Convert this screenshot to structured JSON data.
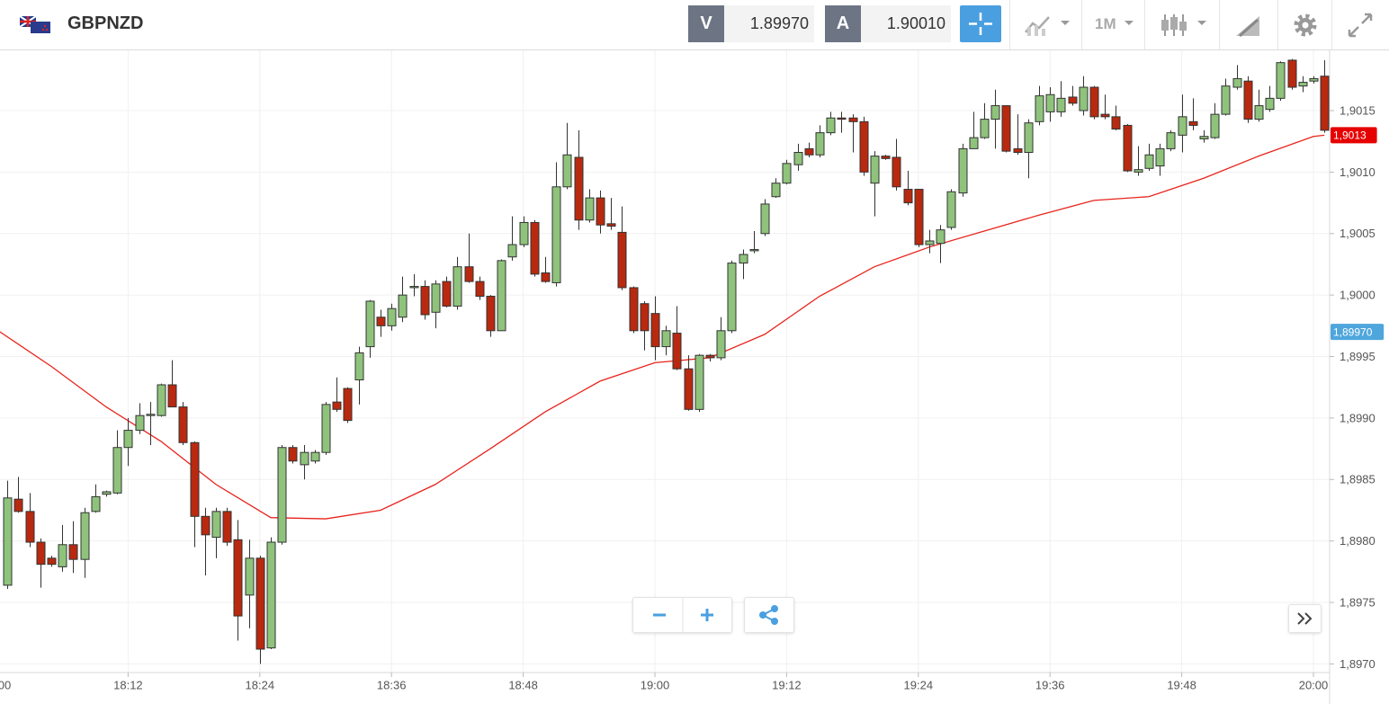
{
  "header": {
    "symbol": "GBPNZD",
    "bid_label": "V",
    "bid": "1.89970",
    "ask_label": "A",
    "ask": "1.90010",
    "timeframe": "1M"
  },
  "chart_data": {
    "type": "candlestick",
    "x": [
      "18:01",
      "18:02",
      "18:03",
      "18:04",
      "18:05",
      "18:06",
      "18:07",
      "18:08",
      "18:09",
      "18:10",
      "18:11",
      "18:12",
      "18:13",
      "18:14",
      "18:15",
      "18:16",
      "18:17",
      "18:18",
      "18:19",
      "18:20",
      "18:21",
      "18:22",
      "18:23",
      "18:24",
      "18:25",
      "18:26",
      "18:27",
      "18:28",
      "18:29",
      "18:30",
      "18:31",
      "18:32",
      "18:33",
      "18:34",
      "18:35",
      "18:36",
      "18:37",
      "18:38",
      "18:39",
      "18:40",
      "18:41",
      "18:42",
      "18:43",
      "18:44",
      "18:45",
      "18:46",
      "18:47",
      "18:48",
      "18:49",
      "18:50",
      "18:51",
      "18:52",
      "18:53",
      "18:54",
      "18:55",
      "18:56",
      "18:57",
      "18:58",
      "18:59",
      "19:00",
      "19:01",
      "19:02",
      "19:03",
      "19:04",
      "19:05",
      "19:06",
      "19:07",
      "19:08",
      "19:09",
      "19:10",
      "19:11",
      "19:12",
      "19:13",
      "19:14",
      "19:15",
      "19:16",
      "19:17",
      "19:18",
      "19:19",
      "19:20",
      "19:21",
      "19:22",
      "19:23",
      "19:24",
      "19:25",
      "19:26",
      "19:27",
      "19:28",
      "19:29",
      "19:30",
      "19:31",
      "19:32",
      "19:33",
      "19:34",
      "19:35",
      "19:36",
      "19:37",
      "19:38",
      "19:39",
      "19:40",
      "19:41",
      "19:42",
      "19:43",
      "19:44",
      "19:45",
      "19:46",
      "19:47",
      "19:48",
      "19:49",
      "19:50",
      "19:51",
      "19:52",
      "19:53",
      "19:54",
      "19:55",
      "19:56",
      "19:57",
      "19:58",
      "19:59",
      "20:00",
      "20:01"
    ],
    "open": [
      1.89764,
      1.89834,
      1.89824,
      1.89799,
      1.89786,
      1.89779,
      1.89797,
      1.89785,
      1.89824,
      1.89838,
      1.89839,
      1.89876,
      1.8989,
      1.89902,
      1.89902,
      1.89927,
      1.89909,
      1.8988,
      1.8982,
      1.89803,
      1.89824,
      1.89801,
      1.89756,
      1.89786,
      1.89713,
      1.89799,
      1.89876,
      1.89862,
      1.89865,
      1.89872,
      1.89913,
      1.89924,
      1.89931,
      1.89958,
      1.89982,
      1.89975,
      1.89982,
      1.90006,
      1.90007,
      1.89986,
      1.90011,
      1.89991,
      1.90023,
      1.90011,
      1.89999,
      1.89971,
      1.90031,
      1.90041,
      1.90059,
      1.90018,
      1.9001,
      1.90088,
      1.90112,
      1.90061,
      1.90079,
      1.90058,
      1.90051,
      1.90006,
      1.89993,
      1.89985,
      1.89958,
      1.89969,
      1.8994,
      1.89907,
      1.89951,
      1.89949,
      1.89971,
      1.90026,
      1.90036,
      1.9005,
      1.9008,
      1.90091,
      1.90106,
      1.90119,
      1.90114,
      1.90132,
      1.90144,
      1.90144,
      1.90141,
      1.90091,
      1.90113,
      1.90112,
      1.90086,
      1.90086,
      1.90041,
      1.90042,
      1.90055,
      1.90083,
      1.90119,
      1.90128,
      1.90143,
      1.90154,
      1.90119,
      1.90116,
      1.90141,
      1.90149,
      1.90149,
      1.90161,
      1.9015,
      1.90169,
      1.90147,
      1.90145,
      1.90138,
      1.901,
      1.90103,
      1.90105,
      1.90119,
      1.9013,
      1.90141,
      1.90127,
      1.90128,
      1.90147,
      1.90169,
      1.90174,
      1.90143,
      1.90151,
      1.9016,
      1.90191,
      1.9017,
      1.90174,
      1.90178
    ],
    "high": [
      1.89849,
      1.89852,
      1.89839,
      1.89802,
      1.89788,
      1.89813,
      1.89816,
      1.89827,
      1.89846,
      1.89841,
      1.8989,
      1.899,
      1.89912,
      1.89913,
      1.89928,
      1.89947,
      1.89913,
      1.89881,
      1.89827,
      1.89827,
      1.89827,
      1.89817,
      1.89801,
      1.89788,
      1.89803,
      1.89878,
      1.89878,
      1.89878,
      1.89874,
      1.89913,
      1.89933,
      1.89925,
      1.89958,
      1.89996,
      1.89988,
      1.89993,
      1.90015,
      1.90017,
      1.90012,
      1.90012,
      1.90015,
      1.90031,
      1.9005,
      1.90015,
      1.9,
      1.90029,
      1.90064,
      1.90064,
      1.90061,
      1.90031,
      1.90108,
      1.9014,
      1.90134,
      1.90086,
      1.90085,
      1.90079,
      1.90072,
      1.90007,
      1.89995,
      1.89999,
      1.89975,
      1.89991,
      1.89951,
      1.89952,
      1.89952,
      1.89982,
      1.90028,
      1.90037,
      1.90052,
      1.90078,
      1.90095,
      1.9011,
      1.90123,
      1.90124,
      1.90138,
      1.90149,
      1.90149,
      1.90147,
      1.90145,
      1.90117,
      1.90114,
      1.90127,
      1.90101,
      1.90086,
      1.90053,
      1.90057,
      1.90086,
      1.90123,
      1.90149,
      1.90156,
      1.90167,
      1.90154,
      1.90147,
      1.90143,
      1.9017,
      1.90169,
      1.90174,
      1.9017,
      1.90178,
      1.9017,
      1.90163,
      1.90154,
      1.90139,
      1.90121,
      1.90123,
      1.90123,
      1.90134,
      1.90163,
      1.9016,
      1.90134,
      1.90156,
      1.90176,
      1.90187,
      1.90178,
      1.90167,
      1.9017,
      1.9019,
      1.90192,
      1.90178,
      1.90178,
      1.90191
    ],
    "low": [
      1.89761,
      1.89823,
      1.89795,
      1.89762,
      1.89779,
      1.89775,
      1.89774,
      1.8977,
      1.89823,
      1.89836,
      1.89838,
      1.89861,
      1.89887,
      1.89878,
      1.89901,
      1.89909,
      1.89878,
      1.89795,
      1.89772,
      1.89786,
      1.89796,
      1.89719,
      1.89729,
      1.897,
      1.89712,
      1.89797,
      1.89863,
      1.8985,
      1.89863,
      1.8987,
      1.89905,
      1.89896,
      1.89911,
      1.89949,
      1.89966,
      1.89971,
      1.89978,
      1.89999,
      1.8998,
      1.89973,
      1.8999,
      1.89988,
      1.9001,
      1.89996,
      1.89966,
      1.89971,
      1.90028,
      1.90039,
      1.90015,
      1.9001,
      1.90007,
      1.90086,
      1.90053,
      1.90059,
      1.9005,
      1.90053,
      1.90004,
      1.89969,
      1.89955,
      1.89947,
      1.89951,
      1.89939,
      1.89906,
      1.89905,
      1.89946,
      1.89947,
      1.89969,
      1.90013,
      1.90034,
      1.90048,
      1.90079,
      1.9009,
      1.90101,
      1.90112,
      1.90112,
      1.9013,
      1.90132,
      1.90116,
      1.90097,
      1.90064,
      1.9011,
      1.90085,
      1.90073,
      1.90039,
      1.90034,
      1.90026,
      1.90053,
      1.9008,
      1.90119,
      1.90127,
      1.90119,
      1.90116,
      1.90114,
      1.90095,
      1.90138,
      1.90141,
      1.90145,
      1.90154,
      1.90146,
      1.90143,
      1.90143,
      1.90134,
      1.901,
      1.90097,
      1.90101,
      1.90097,
      1.90117,
      1.90116,
      1.90134,
      1.90124,
      1.90127,
      1.90146,
      1.90167,
      1.9014,
      1.90141,
      1.90149,
      1.90158,
      1.90167,
      1.90165,
      1.90172,
      1.90132
    ],
    "close": [
      1.89835,
      1.89824,
      1.89799,
      1.89781,
      1.89781,
      1.89797,
      1.89785,
      1.89823,
      1.89836,
      1.8984,
      1.89876,
      1.8989,
      1.89902,
      1.89903,
      1.89927,
      1.89909,
      1.8988,
      1.8982,
      1.89805,
      1.89824,
      1.89799,
      1.89739,
      1.89786,
      1.89712,
      1.89799,
      1.89876,
      1.89865,
      1.89872,
      1.89872,
      1.89911,
      1.89907,
      1.89898,
      1.89953,
      1.89995,
      1.89975,
      1.89989,
      1.9,
      1.90007,
      1.89984,
      1.90009,
      1.89991,
      1.90023,
      1.90011,
      1.89999,
      1.89971,
      1.90028,
      1.90041,
      1.90059,
      1.90017,
      1.90011,
      1.90088,
      1.90114,
      1.90061,
      1.90079,
      1.90057,
      1.90056,
      1.90006,
      1.89971,
      1.89971,
      1.89958,
      1.89971,
      1.8994,
      1.89907,
      1.89951,
      1.89949,
      1.89971,
      1.90026,
      1.90033,
      1.90037,
      1.90074,
      1.90091,
      1.90107,
      1.90116,
      1.90114,
      1.90132,
      1.90144,
      1.90143,
      1.90141,
      1.901,
      1.90113,
      1.90111,
      1.90088,
      1.90075,
      1.90041,
      1.90044,
      1.90053,
      1.90084,
      1.90119,
      1.90128,
      1.90143,
      1.90154,
      1.90117,
      1.90116,
      1.9014,
      1.90162,
      1.90163,
      1.9016,
      1.90156,
      1.90169,
      1.90145,
      1.90145,
      1.90135,
      1.90101,
      1.90102,
      1.90114,
      1.90119,
      1.90132,
      1.90145,
      1.90138,
      1.90129,
      1.90147,
      1.9017,
      1.90176,
      1.90143,
      1.90154,
      1.9016,
      1.90189,
      1.90169,
      1.90173,
      1.90176,
      1.90134
    ],
    "up_color": "#8fc37c",
    "down_color": "#b8290f",
    "line": {
      "x": [
        "18:00",
        "18:05",
        "18:10",
        "18:15",
        "18:20",
        "18:25",
        "18:30",
        "18:35",
        "18:40",
        "18:45",
        "18:50",
        "18:55",
        "19:00",
        "19:05",
        "19:10",
        "19:15",
        "19:20",
        "19:25",
        "19:30",
        "19:35",
        "19:40",
        "19:45",
        "19:50",
        "19:55",
        "20:00",
        "20:01"
      ],
      "values": [
        1.89972,
        1.89942,
        1.89909,
        1.89881,
        1.89846,
        1.89819,
        1.89818,
        1.89825,
        1.89846,
        1.89875,
        1.89905,
        1.8993,
        1.89945,
        1.89949,
        1.89968,
        1.89999,
        1.90023,
        1.90039,
        1.90052,
        1.90065,
        1.90077,
        1.9008,
        1.90095,
        1.90113,
        1.90129,
        1.9013
      ],
      "color": "#e8231b"
    },
    "xlim": [
      "18:00",
      "20:02"
    ],
    "xticks": [
      "18:00",
      "18:12",
      "18:24",
      "18:36",
      "18:48",
      "19:00",
      "19:12",
      "19:24",
      "19:36",
      "19:48",
      "20:00"
    ],
    "ylim": [
      1.89693,
      1.90199
    ],
    "yticks": [
      {
        "value": 1.897,
        "label": "1,8970"
      },
      {
        "value": 1.8975,
        "label": "1,8975"
      },
      {
        "value": 1.898,
        "label": "1,8980"
      },
      {
        "value": 1.8985,
        "label": "1,8985"
      },
      {
        "value": 1.899,
        "label": "1,8990"
      },
      {
        "value": 1.8995,
        "label": "1,8995"
      },
      {
        "value": 1.9,
        "label": "1,9000"
      },
      {
        "value": 1.9005,
        "label": "1,9005"
      },
      {
        "value": 1.901,
        "label": "1,9010"
      },
      {
        "value": 1.9015,
        "label": "1,9015"
      }
    ],
    "price_tags": [
      {
        "value": 1.9013,
        "label": "1,9013",
        "color": "#e60000"
      },
      {
        "value": 1.8997,
        "label": "1,89970",
        "color": "#4ea6dc"
      }
    ],
    "grid": true
  }
}
